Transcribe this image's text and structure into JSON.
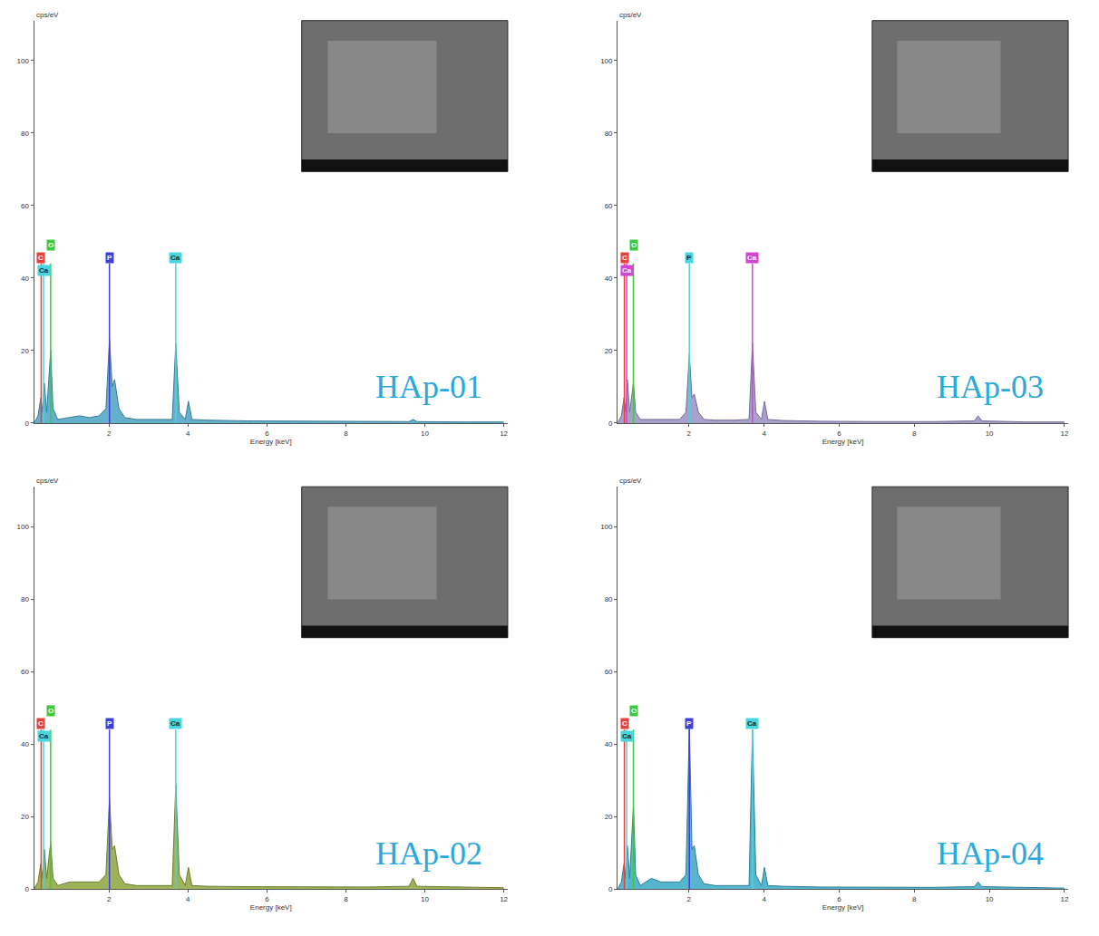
{
  "chart_data": [
    {
      "type": "area",
      "annotation": "HAp-01",
      "x_label": "Energy [keV]",
      "y_label": "cps/eV",
      "color": "#4aa3c4",
      "grid": false,
      "xlim": [
        0.1,
        12.1
      ],
      "xticks": [
        2,
        4,
        6,
        8,
        10,
        12
      ],
      "ylim": [
        0,
        111
      ],
      "yticks": [
        0,
        20,
        40,
        60,
        80,
        100
      ],
      "x": [
        0.1,
        0.2,
        0.27,
        0.32,
        0.36,
        0.42,
        0.52,
        0.58,
        0.7,
        1.0,
        1.25,
        1.5,
        1.75,
        1.92,
        2.01,
        2.08,
        2.14,
        2.25,
        2.4,
        2.7,
        3.2,
        3.6,
        3.69,
        3.78,
        3.93,
        4.01,
        4.1,
        4.5,
        5.5,
        7,
        8.5,
        9.6,
        9.7,
        9.8,
        11,
        12
      ],
      "values": [
        0,
        2,
        7,
        3,
        11,
        3,
        20,
        4,
        1,
        1.5,
        2,
        1.5,
        2,
        4,
        23,
        10,
        12,
        4,
        1.5,
        1,
        1,
        1,
        22,
        3,
        1,
        6,
        1,
        0.8,
        0.6,
        0.5,
        0.4,
        0.4,
        1,
        0.4,
        0.3,
        0.3
      ],
      "peak_height": 44,
      "peaks": [
        {
          "label": "C",
          "x": 0.28,
          "color": "#e8413a"
        },
        {
          "label": "Ca",
          "x": 0.34,
          "color": "#45d6e0"
        },
        {
          "label": "O",
          "x": 0.52,
          "color": "#3cc83c"
        },
        {
          "label": "P",
          "x": 2.01,
          "color": "#3f3fd9"
        },
        {
          "label": "Ca",
          "x": 3.69,
          "color": "#45d6e0"
        }
      ]
    },
    {
      "type": "area",
      "annotation": "HAp-03",
      "x_label": "Energy [keV]",
      "y_label": "cps/eV",
      "color": "#9a8fc4",
      "grid": false,
      "xlim": [
        0.1,
        12.1
      ],
      "xticks": [
        2,
        4,
        6,
        8,
        10,
        12
      ],
      "ylim": [
        0,
        111
      ],
      "yticks": [
        0,
        20,
        40,
        60,
        80,
        100
      ],
      "x": [
        0.1,
        0.2,
        0.27,
        0.32,
        0.36,
        0.42,
        0.52,
        0.58,
        0.7,
        1.0,
        1.25,
        1.5,
        1.75,
        1.92,
        2.01,
        2.08,
        2.14,
        2.25,
        2.4,
        2.7,
        3.2,
        3.6,
        3.69,
        3.78,
        3.93,
        4.01,
        4.1,
        4.5,
        5.5,
        7,
        8.5,
        9.6,
        9.7,
        9.8,
        11,
        12
      ],
      "values": [
        0,
        2,
        7,
        3,
        12,
        3,
        11,
        3,
        1,
        1,
        1,
        1,
        1,
        3,
        19,
        7,
        8,
        3,
        1,
        0.8,
        0.8,
        1,
        22,
        3,
        1,
        6,
        1,
        0.7,
        0.5,
        0.4,
        0.4,
        0.6,
        2,
        0.6,
        0.3,
        0.3
      ],
      "peak_height": 44,
      "peaks": [
        {
          "label": "C",
          "x": 0.28,
          "color": "#e8413a"
        },
        {
          "label": "Ca",
          "x": 0.34,
          "color": "#d444d4"
        },
        {
          "label": "O",
          "x": 0.52,
          "color": "#3cc83c"
        },
        {
          "label": "P",
          "x": 2.01,
          "color": "#45d6e0"
        },
        {
          "label": "Ca",
          "x": 3.69,
          "color": "#d444d4"
        }
      ]
    },
    {
      "type": "area",
      "annotation": "HAp-02",
      "x_label": "Energy [keV]",
      "y_label": "cps/eV",
      "color": "#8da53c",
      "grid": false,
      "xlim": [
        0.1,
        12.1
      ],
      "xticks": [
        2,
        4,
        6,
        8,
        10,
        12
      ],
      "ylim": [
        0,
        111
      ],
      "yticks": [
        0,
        20,
        40,
        60,
        80,
        100
      ],
      "x": [
        0.1,
        0.2,
        0.27,
        0.32,
        0.36,
        0.42,
        0.52,
        0.58,
        0.7,
        1.0,
        1.25,
        1.5,
        1.75,
        1.92,
        2.01,
        2.08,
        2.14,
        2.25,
        2.4,
        2.7,
        3.2,
        3.6,
        3.69,
        3.78,
        3.93,
        4.01,
        4.1,
        4.5,
        5.5,
        7,
        8.5,
        9.6,
        9.7,
        9.8,
        11,
        12
      ],
      "values": [
        0,
        2,
        7,
        3,
        11,
        3,
        13,
        3,
        1,
        2,
        2,
        2,
        2,
        4,
        25,
        11,
        12,
        4,
        1.5,
        1,
        1,
        1,
        29,
        4,
        1,
        6,
        1,
        0.8,
        0.7,
        0.6,
        0.6,
        0.8,
        3,
        0.8,
        0.5,
        0.4
      ],
      "peak_height": 44,
      "peaks": [
        {
          "label": "C",
          "x": 0.28,
          "color": "#e8413a"
        },
        {
          "label": "Ca",
          "x": 0.34,
          "color": "#45d6e0"
        },
        {
          "label": "O",
          "x": 0.52,
          "color": "#3cc83c"
        },
        {
          "label": "P",
          "x": 2.01,
          "color": "#3f3fd9"
        },
        {
          "label": "Ca",
          "x": 3.69,
          "color": "#45d6e0"
        }
      ]
    },
    {
      "type": "area",
      "annotation": "HAp-04",
      "x_label": "Energy [keV]",
      "y_label": "cps/eV",
      "color": "#3aa8c6",
      "grid": false,
      "xlim": [
        0.1,
        12.1
      ],
      "xticks": [
        2,
        4,
        6,
        8,
        10,
        12
      ],
      "ylim": [
        0,
        111
      ],
      "yticks": [
        0,
        20,
        40,
        60,
        80,
        100
      ],
      "x": [
        0.1,
        0.2,
        0.27,
        0.32,
        0.36,
        0.42,
        0.52,
        0.58,
        0.7,
        1.0,
        1.25,
        1.5,
        1.75,
        1.92,
        2.01,
        2.08,
        2.14,
        2.25,
        2.4,
        2.7,
        3.2,
        3.6,
        3.69,
        3.78,
        3.93,
        4.01,
        4.1,
        4.5,
        5.5,
        7,
        8.5,
        9.6,
        9.7,
        9.8,
        11,
        12
      ],
      "values": [
        0,
        2,
        7,
        3,
        12,
        3,
        23,
        4,
        1,
        3,
        2,
        2,
        2,
        4,
        45,
        11,
        12,
        4,
        1.5,
        1,
        1,
        1,
        44,
        4,
        1,
        6,
        1,
        0.8,
        0.6,
        0.5,
        0.5,
        0.7,
        2,
        0.7,
        0.4,
        0.3
      ],
      "peak_height": 44,
      "peaks": [
        {
          "label": "C",
          "x": 0.28,
          "color": "#e8413a"
        },
        {
          "label": "Ca",
          "x": 0.34,
          "color": "#45d6e0"
        },
        {
          "label": "O",
          "x": 0.52,
          "color": "#3cc83c"
        },
        {
          "label": "P",
          "x": 2.01,
          "color": "#3f3fd9"
        },
        {
          "label": "Ca",
          "x": 3.69,
          "color": "#45d6e0"
        }
      ]
    }
  ]
}
